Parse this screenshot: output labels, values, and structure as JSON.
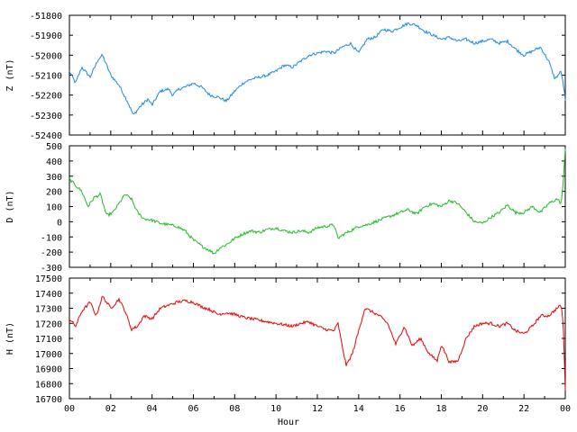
{
  "chart_data": [
    {
      "type": "line",
      "ylabel": "Z (nT)",
      "xlim": [
        0,
        24
      ],
      "ylim": [
        -52400,
        -51800
      ],
      "yticks": [
        -51800,
        -51900,
        -52000,
        -52100,
        -52200,
        -52300,
        -52400
      ],
      "color": "#1e88e5",
      "grid": false,
      "x": [
        0,
        0.3,
        0.6,
        1.0,
        1.4,
        1.6,
        2.0,
        2.4,
        2.8,
        3.1,
        3.4,
        3.8,
        4.0,
        4.4,
        4.8,
        5.0,
        5.3,
        5.6,
        6.0,
        6.4,
        6.8,
        7.2,
        7.6,
        8.0,
        8.4,
        8.8,
        9.2,
        9.6,
        10.0,
        10.4,
        10.8,
        11.2,
        11.6,
        12.0,
        12.4,
        12.8,
        13.2,
        13.6,
        14.0,
        14.4,
        14.8,
        15.2,
        15.6,
        16.0,
        16.4,
        16.8,
        17.2,
        17.6,
        18.0,
        18.4,
        18.8,
        19.2,
        19.6,
        20.0,
        20.4,
        20.8,
        21.2,
        21.6,
        22.0,
        22.4,
        22.8,
        23.2,
        23.5,
        23.8,
        23.95,
        24.0
      ],
      "y": [
        -52080,
        -52140,
        -52060,
        -52110,
        -52020,
        -52000,
        -52100,
        -52150,
        -52230,
        -52300,
        -52260,
        -52220,
        -52250,
        -52180,
        -52170,
        -52200,
        -52170,
        -52160,
        -52140,
        -52160,
        -52200,
        -52210,
        -52230,
        -52180,
        -52140,
        -52120,
        -52110,
        -52100,
        -52080,
        -52050,
        -52060,
        -52030,
        -52000,
        -51990,
        -51980,
        -51990,
        -51960,
        -51940,
        -51990,
        -51920,
        -51910,
        -51870,
        -51880,
        -51860,
        -51840,
        -51850,
        -51880,
        -51900,
        -51920,
        -51910,
        -51930,
        -51920,
        -51940,
        -51930,
        -51920,
        -51940,
        -51930,
        -51970,
        -52000,
        -51980,
        -51960,
        -52030,
        -52120,
        -52080,
        -52180,
        -52230
      ]
    },
    {
      "type": "line",
      "ylabel": "D (nT)",
      "xlim": [
        0,
        24
      ],
      "ylim": [
        -300,
        500
      ],
      "yticks": [
        500,
        400,
        300,
        200,
        100,
        0,
        -100,
        -200,
        -300
      ],
      "color": "#22bb22",
      "grid": false,
      "x": [
        0,
        0.3,
        0.6,
        0.9,
        1.2,
        1.5,
        1.8,
        2.1,
        2.4,
        2.7,
        3.0,
        3.3,
        3.6,
        4.0,
        4.4,
        4.8,
        5.2,
        5.6,
        6.0,
        6.4,
        6.8,
        7.0,
        7.3,
        7.6,
        8.0,
        8.4,
        8.8,
        9.2,
        9.6,
        10.0,
        10.4,
        10.8,
        11.2,
        11.6,
        12.0,
        12.4,
        12.8,
        13.0,
        13.3,
        13.6,
        14.0,
        14.4,
        14.8,
        15.2,
        15.6,
        16.0,
        16.4,
        16.8,
        17.2,
        17.6,
        18.0,
        18.4,
        18.8,
        19.2,
        19.6,
        20.0,
        20.4,
        20.8,
        21.2,
        21.6,
        22.0,
        22.4,
        22.8,
        23.2,
        23.6,
        23.8,
        23.9,
        24.0
      ],
      "y": [
        280,
        240,
        200,
        100,
        160,
        180,
        40,
        60,
        120,
        180,
        150,
        60,
        20,
        10,
        -10,
        -20,
        -30,
        -60,
        -120,
        -160,
        -190,
        -210,
        -170,
        -150,
        -110,
        -80,
        -60,
        -70,
        -50,
        -40,
        -60,
        -70,
        -60,
        -70,
        -40,
        -30,
        -20,
        -110,
        -80,
        -60,
        -30,
        -20,
        0,
        20,
        40,
        60,
        80,
        50,
        100,
        120,
        100,
        140,
        120,
        60,
        0,
        -10,
        30,
        60,
        110,
        60,
        60,
        100,
        60,
        120,
        150,
        120,
        250,
        490
      ]
    },
    {
      "type": "line",
      "ylabel": "H (nT)",
      "xlabel": "Hour",
      "xlim": [
        0,
        24
      ],
      "ylim": [
        16700,
        17500
      ],
      "yticks": [
        17500,
        17400,
        17300,
        17200,
        17100,
        17000,
        16900,
        16800,
        16700
      ],
      "color": "#ee0000",
      "grid": false,
      "x": [
        0,
        0.3,
        0.6,
        1.0,
        1.3,
        1.6,
        2.0,
        2.4,
        2.7,
        3.0,
        3.3,
        3.6,
        4.0,
        4.4,
        4.8,
        5.2,
        5.6,
        6.0,
        6.4,
        6.8,
        7.2,
        7.6,
        8.0,
        8.4,
        8.8,
        9.2,
        9.6,
        10.0,
        10.4,
        10.8,
        11.2,
        11.6,
        12.0,
        12.4,
        12.8,
        13.0,
        13.2,
        13.4,
        13.7,
        14.0,
        14.3,
        14.6,
        15.0,
        15.4,
        15.8,
        16.2,
        16.6,
        17.0,
        17.4,
        17.8,
        18.0,
        18.4,
        18.8,
        19.2,
        19.6,
        20.0,
        20.4,
        20.8,
        21.2,
        21.6,
        22.0,
        22.4,
        22.8,
        23.2,
        23.6,
        23.8,
        23.9,
        24.0
      ],
      "y": [
        17230,
        17180,
        17280,
        17340,
        17250,
        17380,
        17300,
        17360,
        17280,
        17160,
        17180,
        17250,
        17230,
        17300,
        17320,
        17340,
        17350,
        17340,
        17310,
        17290,
        17260,
        17270,
        17260,
        17240,
        17230,
        17220,
        17210,
        17200,
        17190,
        17180,
        17200,
        17210,
        17180,
        17160,
        17150,
        17200,
        17050,
        16920,
        17000,
        17150,
        17300,
        17280,
        17250,
        17200,
        17060,
        17180,
        17050,
        17100,
        17000,
        16950,
        17060,
        16940,
        16950,
        17100,
        17180,
        17200,
        17200,
        17180,
        17200,
        17150,
        17130,
        17180,
        17250,
        17250,
        17300,
        17320,
        17200,
        16760
      ]
    }
  ],
  "xticks": [
    "00",
    "02",
    "04",
    "06",
    "08",
    "10",
    "12",
    "14",
    "16",
    "18",
    "20",
    "22",
    "00"
  ]
}
